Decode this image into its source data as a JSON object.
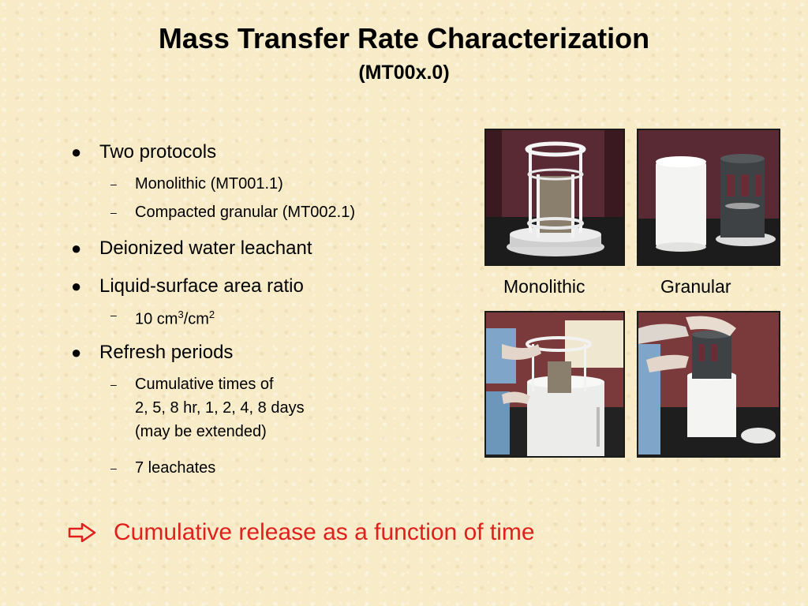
{
  "title": "Mass Transfer Rate Characterization",
  "subtitle": "(MT00x.0)",
  "bullets": {
    "b1": "Two protocols",
    "b1_s1": "Monolithic (MT001.1)",
    "b1_s2": "Compacted granular (MT002.1)",
    "b2": "Deionized water leachant",
    "b3": "Liquid-surface area ratio",
    "b3_s1_num": "10 cm",
    "b3_s1_exp1": "3",
    "b3_s1_slash": "/cm",
    "b3_s1_exp2": "2",
    "b4": "Refresh periods",
    "b4_s1_line1": "Cumulative times of",
    "b4_s1_line2": "2, 5, 8 hr, 1, 2, 4, 8 days",
    "b4_s1_line3": "(may be extended)",
    "b4_s2": "7 leachates"
  },
  "callout": "Cumulative release as a function of time",
  "captions": {
    "left": "Monolithic",
    "right": "Granular"
  },
  "colors": {
    "background": "#f8ecc8",
    "callout": "#e0201c",
    "text": "#000000"
  },
  "icons": {
    "bullet": "bullet-dot-icon",
    "sub": "dash-icon",
    "callout": "right-arrow-outline-icon"
  }
}
